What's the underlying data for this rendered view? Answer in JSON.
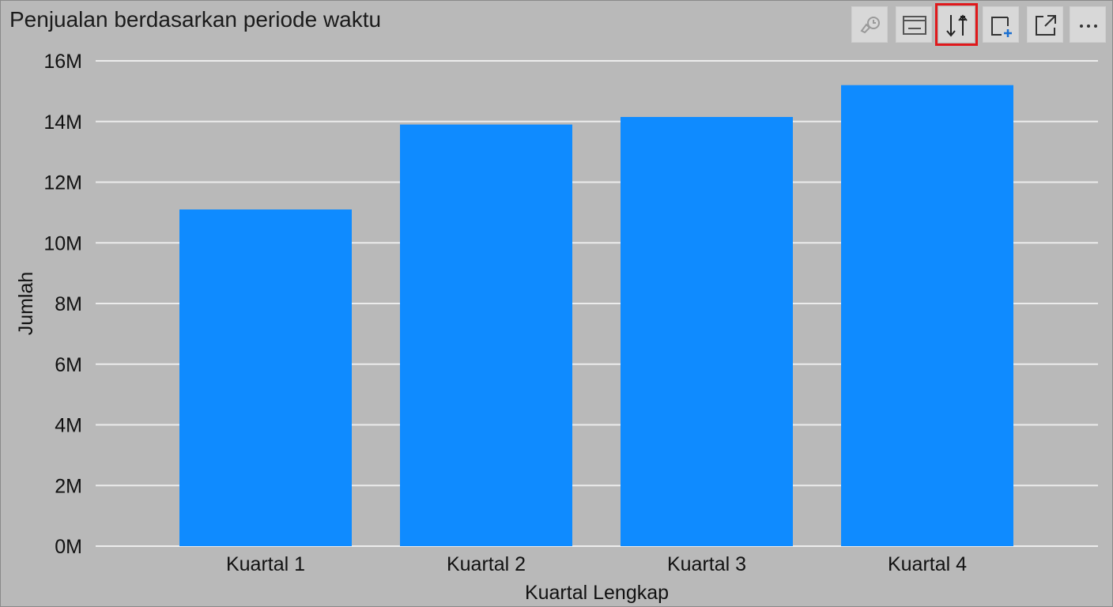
{
  "visual": {
    "title": "Penjualan berdasarkan periode waktu",
    "toolbar": [
      {
        "name": "drill-up-icon-button",
        "icon": "drill-icon",
        "selected": false
      },
      {
        "name": "show-as-table-button",
        "icon": "table-view-icon",
        "selected": false
      },
      {
        "name": "sort-button",
        "icon": "sort-icon",
        "selected": true
      },
      {
        "name": "add-comment-button",
        "icon": "add-frame-icon",
        "selected": false
      },
      {
        "name": "focus-mode-button",
        "icon": "expand-icon",
        "selected": false
      },
      {
        "name": "more-options-button",
        "icon": "more-icon",
        "selected": false
      }
    ]
  },
  "colors": {
    "bar": "#0f8bff",
    "background": "#b9b9b9",
    "grid": "#ececec",
    "highlight": "#e0181b"
  },
  "chart_data": {
    "type": "bar",
    "title": "Penjualan berdasarkan periode waktu",
    "xlabel": "Kuartal Lengkap",
    "ylabel": "Jumlah",
    "categories": [
      "Kuartal 1",
      "Kuartal 2",
      "Kuartal 3",
      "Kuartal 4"
    ],
    "values": [
      11100000,
      13900000,
      14150000,
      15200000
    ],
    "ylim": [
      0,
      16000000
    ],
    "yticks": [
      {
        "value": 0,
        "label": "0M"
      },
      {
        "value": 2000000,
        "label": "2M"
      },
      {
        "value": 4000000,
        "label": "4M"
      },
      {
        "value": 6000000,
        "label": "6M"
      },
      {
        "value": 8000000,
        "label": "8M"
      },
      {
        "value": 10000000,
        "label": "10M"
      },
      {
        "value": 12000000,
        "label": "12M"
      },
      {
        "value": 14000000,
        "label": "14M"
      },
      {
        "value": 16000000,
        "label": "16M"
      }
    ],
    "grid": true,
    "legend": "none"
  }
}
